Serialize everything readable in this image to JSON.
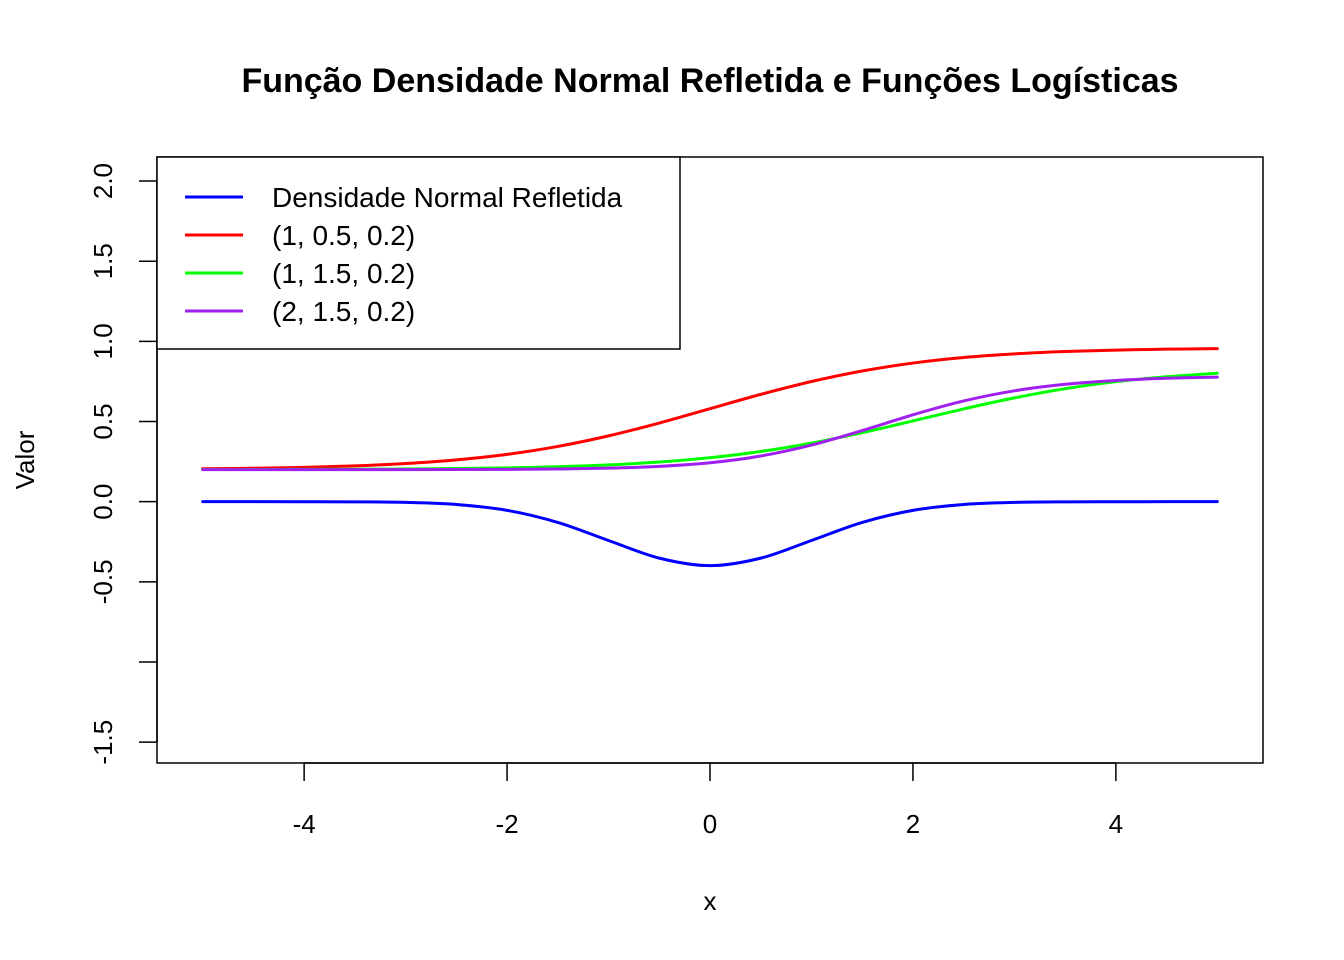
{
  "chart_data": {
    "type": "line",
    "title": "Função Densidade Normal Refletida e Funções Logísticas",
    "xlabel": "x",
    "ylabel": "Valor",
    "xlim": [
      -5.45,
      5.45
    ],
    "ylim": [
      -1.63,
      2.15
    ],
    "x_ticks": [
      -4,
      -2,
      0,
      2,
      4
    ],
    "x_tick_labels": [
      "-4",
      "-2",
      "0",
      "2",
      "4"
    ],
    "y_ticks": [
      -1.5,
      -1.0,
      -0.5,
      0.0,
      0.5,
      1.0,
      1.5,
      2.0
    ],
    "y_tick_labels": [
      "-1.5",
      "",
      "-0.5",
      "0.0",
      "0.5",
      "1.0",
      "1.5",
      "2.0"
    ],
    "grid": false,
    "legend_position": "top-left",
    "x": [
      -5,
      -4.5,
      -4,
      -3.5,
      -3,
      -2.5,
      -2,
      -1.5,
      -1,
      -0.5,
      0,
      0.5,
      1,
      1.5,
      2,
      2.5,
      3,
      3.5,
      4,
      4.5,
      5
    ],
    "series": [
      {
        "name": "Densidade Normal Refletida",
        "color": "#0000ff",
        "values": [
          0.0,
          0.0,
          -0.0001,
          -0.0009,
          -0.0044,
          -0.0175,
          -0.054,
          -0.1295,
          -0.242,
          -0.3521,
          -0.3989,
          -0.3521,
          -0.242,
          -0.1295,
          -0.054,
          -0.0175,
          -0.0044,
          -0.0009,
          -0.0001,
          0.0,
          0.0
        ]
      },
      {
        "name": "(1, 0.5, 0.2)",
        "color": "#ff0000",
        "values": [
          0.2053,
          0.2087,
          0.2143,
          0.2234,
          0.2381,
          0.2609,
          0.2953,
          0.3447,
          0.4105,
          0.4906,
          0.58,
          0.6694,
          0.7495,
          0.8153,
          0.8647,
          0.8991,
          0.9219,
          0.9366,
          0.9457,
          0.9513,
          0.9547
        ]
      },
      {
        "name": "(1, 1.5, 0.2)",
        "color": "#00ff00",
        "values": [
          0.2005,
          0.2009,
          0.2014,
          0.2024,
          0.2039,
          0.2066,
          0.2109,
          0.2179,
          0.2294,
          0.2474,
          0.2744,
          0.3131,
          0.3653,
          0.4302,
          0.5036,
          0.5787,
          0.6475,
          0.7049,
          0.7486,
          0.7794,
          0.8009
        ]
      },
      {
        "name": "(2, 1.5, 0.2)",
        "color": "#a020f0",
        "values": [
          0.2,
          0.2,
          0.2,
          0.2001,
          0.2003,
          0.2007,
          0.2017,
          0.2039,
          0.209,
          0.2202,
          0.2428,
          0.2849,
          0.3531,
          0.4436,
          0.5419,
          0.6283,
          0.6916,
          0.7323,
          0.7562,
          0.7696,
          0.777
        ]
      }
    ]
  }
}
